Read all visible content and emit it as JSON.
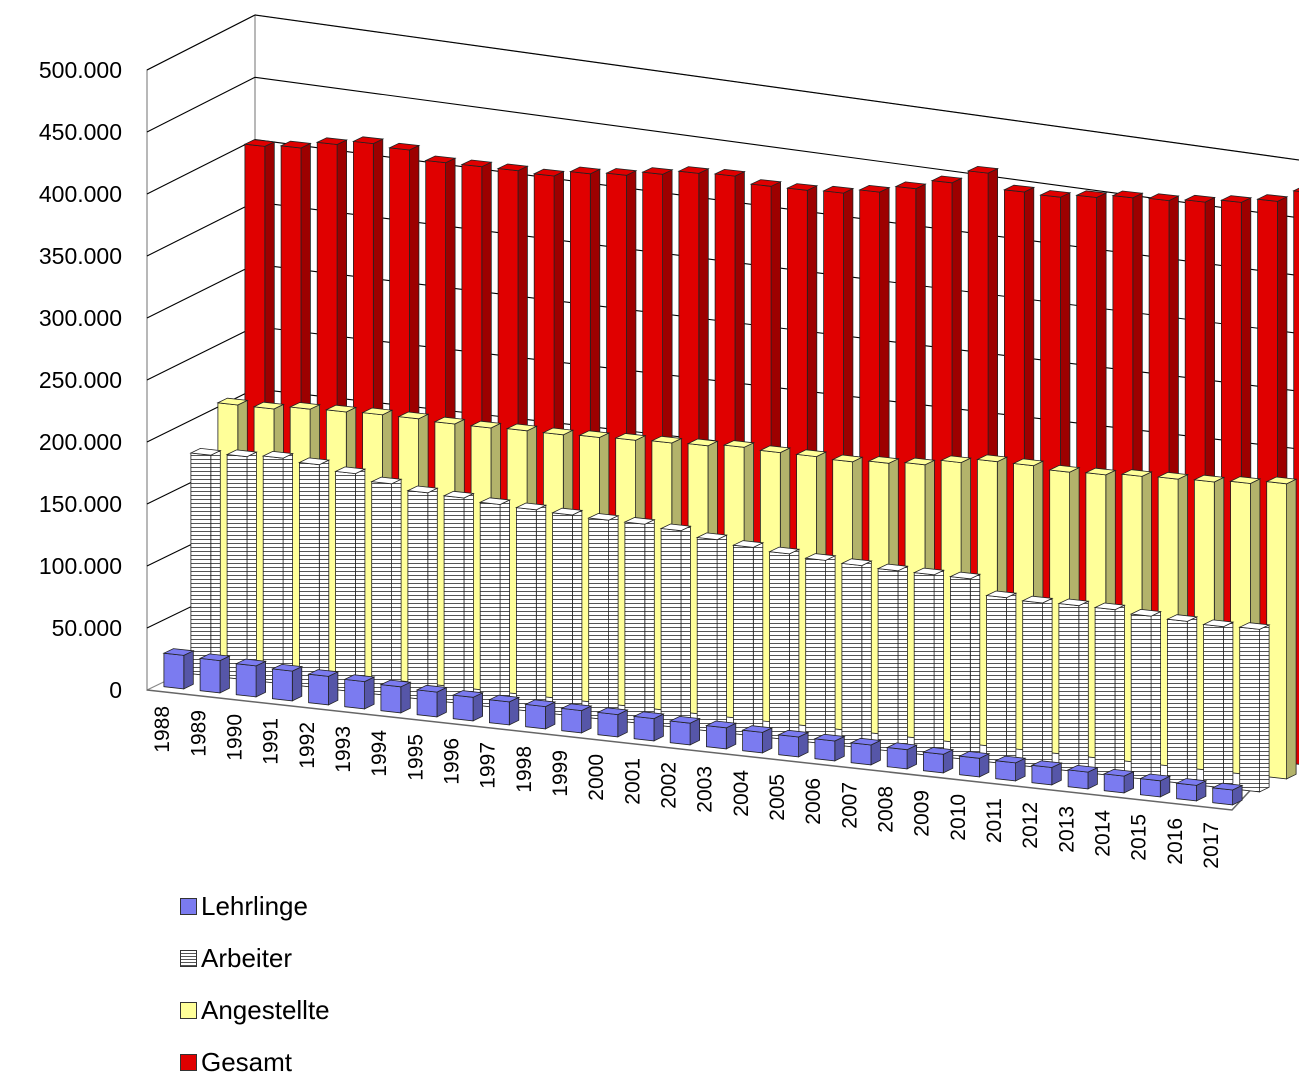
{
  "chart_data": {
    "type": "bar",
    "title": "",
    "xlabel": "",
    "ylabel": "",
    "ylim": [
      0,
      500000
    ],
    "y_tick_labels": [
      "0",
      "50.000",
      "100.000",
      "150.000",
      "200.000",
      "250.000",
      "300.000",
      "350.000",
      "400.000",
      "450.000",
      "500.000"
    ],
    "y_ticks": [
      0,
      50000,
      100000,
      150000,
      200000,
      250000,
      300000,
      350000,
      400000,
      450000,
      500000
    ],
    "categories": [
      "1988",
      "1989",
      "1990",
      "1991",
      "1992",
      "1993",
      "1994",
      "1995",
      "1996",
      "1997",
      "1998",
      "1999",
      "2000",
      "2001",
      "2002",
      "2003",
      "2004",
      "2005",
      "2006",
      "2007",
      "2008",
      "2009",
      "2010",
      "2011",
      "2012",
      "2013",
      "2014",
      "2015",
      "2016",
      "2017"
    ],
    "grid": true,
    "legend_position": "bottom-left",
    "series": [
      {
        "name": "Lehrlinge",
        "color": "#7b7bf0",
        "values": [
          27000,
          26000,
          25000,
          24000,
          23000,
          22000,
          21000,
          20000,
          19000,
          18500,
          18000,
          18000,
          18000,
          18000,
          17500,
          17000,
          16500,
          16000,
          16000,
          16000,
          15500,
          15000,
          15000,
          14500,
          14000,
          13500,
          13500,
          13000,
          12500,
          12000
        ]
      },
      {
        "name": "Arbeiter",
        "color": "#ffffff",
        "values": [
          178000,
          180000,
          182000,
          180000,
          176000,
          171000,
          167000,
          166000,
          164000,
          163000,
          162000,
          161000,
          161000,
          159000,
          155000,
          152000,
          150000,
          148000,
          147000,
          146000,
          146000,
          146000,
          134000,
          133000,
          134000,
          134000,
          132000,
          131000,
          130000,
          131000
        ]
      },
      {
        "name": "Angestellte",
        "color": "#ffff99",
        "values": [
          208000,
          208000,
          211000,
          212000,
          213000,
          213000,
          212000,
          212000,
          213000,
          213000,
          214000,
          215000,
          216000,
          217000,
          219000,
          218000,
          218000,
          217000,
          219000,
          221000,
          226000,
          230000,
          230000,
          228000,
          229000,
          231000,
          232000,
          233000,
          235000,
          238000
        ]
      },
      {
        "name": "Gesamt",
        "color": "#e00000",
        "values": [
          406000,
          408000,
          414000,
          418000,
          416000,
          409000,
          409000,
          409000,
          408000,
          413000,
          415000,
          419000,
          423000,
          424000,
          419000,
          419000,
          420000,
          424000,
          430000,
          438000,
          449000,
          437000,
          436000,
          439000,
          442000,
          443000,
          445000,
          448000,
          452000,
          462000
        ]
      }
    ]
  }
}
